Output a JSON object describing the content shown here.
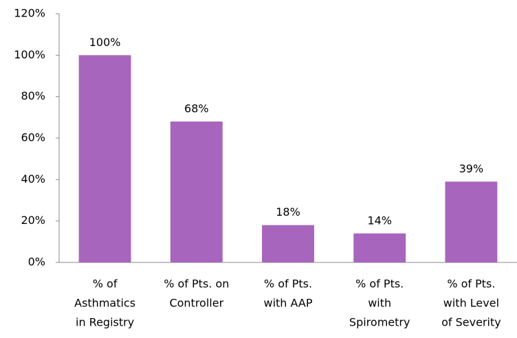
{
  "chart_data": {
    "type": "bar",
    "categories": [
      [
        "% of",
        "Asthmatics",
        "in Registry"
      ],
      [
        "% of Pts. on",
        "Controller"
      ],
      [
        "% of Pts.",
        "with AAP"
      ],
      [
        "% of Pts.",
        "with",
        "Spirometry"
      ],
      [
        "% of Pts.",
        "with Level",
        "of Severity"
      ]
    ],
    "values": [
      100,
      68,
      18,
      14,
      39
    ],
    "value_labels": [
      "100%",
      "68%",
      "18%",
      "14%",
      "39%"
    ],
    "color": "#a865bd",
    "ylim": [
      0,
      120
    ],
    "yticks": [
      {
        "value": 0,
        "label": "0%"
      },
      {
        "value": 20,
        "label": "20%"
      },
      {
        "value": 40,
        "label": "40%"
      },
      {
        "value": 60,
        "label": "60%"
      },
      {
        "value": 80,
        "label": "80%"
      },
      {
        "value": 100,
        "label": "100%"
      },
      {
        "value": 120,
        "label": "120%"
      }
    ],
    "grid": false
  }
}
